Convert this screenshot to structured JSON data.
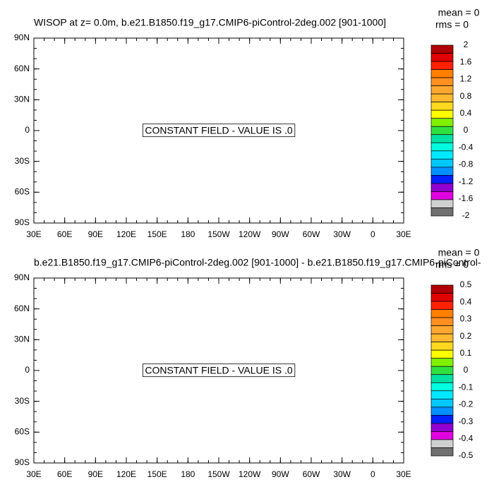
{
  "chart_data": [
    {
      "type": "map",
      "title": "WISOP at z=   0.0m, b.e21.B1850.f19_g17.CMIP6-piControl-2deg.002 [901-1000]",
      "annotation": "CONSTANT FIELD - VALUE IS .0",
      "stats": [
        "mean = 0",
        "rms = 0"
      ],
      "xlim": [
        30,
        390
      ],
      "xticks": [
        {
          "value": 30,
          "label": "30E"
        },
        {
          "value": 60,
          "label": "60E"
        },
        {
          "value": 90,
          "label": "90E"
        },
        {
          "value": 120,
          "label": "120E"
        },
        {
          "value": 150,
          "label": "150E"
        },
        {
          "value": 180,
          "label": "180"
        },
        {
          "value": 210,
          "label": "150W"
        },
        {
          "value": 240,
          "label": "120W"
        },
        {
          "value": 270,
          "label": "90W"
        },
        {
          "value": 300,
          "label": "60W"
        },
        {
          "value": 330,
          "label": "30W"
        },
        {
          "value": 360,
          "label": "0"
        },
        {
          "value": 390,
          "label": "30E"
        }
      ],
      "ylim": [
        -90,
        90
      ],
      "yticks": [
        {
          "value": 90,
          "label": "90N"
        },
        {
          "value": 60,
          "label": "60N"
        },
        {
          "value": 30,
          "label": "30N"
        },
        {
          "value": 0,
          "label": "0"
        },
        {
          "value": -30,
          "label": "30S"
        },
        {
          "value": -60,
          "label": "60S"
        },
        {
          "value": -90,
          "label": "90S"
        }
      ],
      "colorbar": {
        "range": [
          -2,
          2
        ],
        "ticks": [
          2,
          1.6,
          1.2,
          0.8,
          0.4,
          0,
          -0.4,
          -0.8,
          -1.2,
          -1.6,
          -2
        ],
        "colors": [
          "#b00000",
          "#e00000",
          "#ff2000",
          "#ff7f00",
          "#ff9020",
          "#ffa830",
          "#ffb830",
          "#ffd820",
          "#ffff00",
          "#80f000",
          "#30e040",
          "#00e0a0",
          "#00ffe0",
          "#00e8ff",
          "#00c8ff",
          "#0090ff",
          "#0020ff",
          "#9000d0",
          "#e000e0",
          "#d0d0d0",
          "#707070"
        ]
      }
    },
    {
      "type": "map",
      "title": "b.e21.B1850.f19_g17.CMIP6-piControl-2deg.002 [901-1000] - b.e21.B1850.f19_g17.CMIP6-piControl-",
      "annotation": "CONSTANT FIELD - VALUE IS .0",
      "stats": [
        "mean = 0",
        "rms = 0"
      ],
      "xlim": [
        30,
        390
      ],
      "xticks": [
        {
          "value": 30,
          "label": "30E"
        },
        {
          "value": 60,
          "label": "60E"
        },
        {
          "value": 90,
          "label": "90E"
        },
        {
          "value": 120,
          "label": "120E"
        },
        {
          "value": 150,
          "label": "150E"
        },
        {
          "value": 180,
          "label": "180"
        },
        {
          "value": 210,
          "label": "150W"
        },
        {
          "value": 240,
          "label": "120W"
        },
        {
          "value": 270,
          "label": "90W"
        },
        {
          "value": 300,
          "label": "60W"
        },
        {
          "value": 330,
          "label": "30W"
        },
        {
          "value": 360,
          "label": "0"
        },
        {
          "value": 390,
          "label": "30E"
        }
      ],
      "ylim": [
        -90,
        90
      ],
      "yticks": [
        {
          "value": 90,
          "label": "90N"
        },
        {
          "value": 60,
          "label": "60N"
        },
        {
          "value": 30,
          "label": "30N"
        },
        {
          "value": 0,
          "label": "0"
        },
        {
          "value": -30,
          "label": "30S"
        },
        {
          "value": -60,
          "label": "60S"
        },
        {
          "value": -90,
          "label": "90S"
        }
      ],
      "colorbar": {
        "range": [
          -0.5,
          0.5
        ],
        "ticks": [
          0.5,
          0.4,
          0.3,
          0.2,
          0.1,
          0,
          -0.1,
          -0.2,
          -0.3,
          -0.4,
          -0.5
        ],
        "colors": [
          "#b00000",
          "#e00000",
          "#ff2000",
          "#ff7f00",
          "#ff9020",
          "#ffa830",
          "#ffb830",
          "#ffd820",
          "#ffff00",
          "#80f000",
          "#30e040",
          "#00e0a0",
          "#00ffe0",
          "#00e8ff",
          "#00c8ff",
          "#0090ff",
          "#0020ff",
          "#9000d0",
          "#e000e0",
          "#d0d0d0",
          "#707070"
        ]
      }
    }
  ]
}
